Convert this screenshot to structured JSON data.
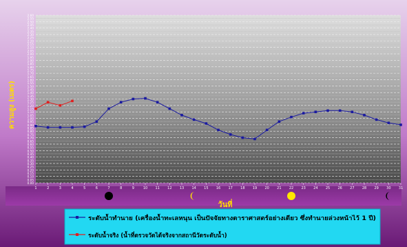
{
  "chart_data": {
    "type": "line",
    "xlabel": "วันที่",
    "ylabel": "ความสูง (เมตร)",
    "x": [
      1,
      2,
      3,
      4,
      5,
      6,
      7,
      8,
      9,
      10,
      11,
      12,
      13,
      14,
      15,
      16,
      17,
      18,
      19,
      20,
      21,
      22,
      23,
      24,
      25,
      26,
      27,
      28,
      29,
      30,
      31
    ],
    "xlim": [
      1,
      31
    ],
    "ylim": [
      0,
      2.6
    ],
    "y_ticks": [
      "0.00",
      "0.05",
      "0.10",
      "0.15",
      "0.20",
      "0.25",
      "0.30",
      "0.35",
      "0.40",
      "0.45",
      "0.50",
      "0.55",
      "0.60",
      "0.65",
      "0.70",
      "0.75",
      "0.80",
      "0.85",
      "0.90",
      "0.95",
      "1.00",
      "1.05",
      "1.10",
      "1.15",
      "1.20",
      "1.25",
      "1.30",
      "1.35",
      "1.40",
      "1.45",
      "1.50",
      "1.55",
      "1.60",
      "1.65",
      "1.70",
      "1.75",
      "1.80",
      "1.85",
      "1.90",
      "1.95",
      "2.00",
      "2.05",
      "2.10",
      "2.15",
      "2.20",
      "2.25",
      "2.30",
      "2.35",
      "2.40",
      "2.45",
      "2.50",
      "2.55",
      "2.60"
    ],
    "grid": true,
    "series": [
      {
        "name": "ระดับน้ำทำนาย (เครื่องน้ำทะเลหนุน เป็นปัจจัยทางดาราศาสตร์อย่างเดียว ซึ่งทำนายล่วงหน้าไว้ 1 ปี)",
        "color": "#1a1aa0",
        "x": [
          1,
          2,
          3,
          4,
          5,
          6,
          7,
          8,
          9,
          10,
          11,
          12,
          13,
          14,
          15,
          16,
          17,
          18,
          19,
          20,
          21,
          22,
          23,
          24,
          25,
          26,
          27,
          28,
          29,
          30,
          31
        ],
        "values": [
          0.88,
          0.86,
          0.86,
          0.86,
          0.87,
          0.95,
          1.15,
          1.25,
          1.3,
          1.31,
          1.25,
          1.15,
          1.05,
          0.98,
          0.92,
          0.82,
          0.75,
          0.7,
          0.68,
          0.82,
          0.95,
          1.02,
          1.08,
          1.1,
          1.12,
          1.12,
          1.1,
          1.05,
          0.98,
          0.93,
          0.9
        ]
      },
      {
        "name": "ระดับน้ำจริง (น้ำที่ตรวจวัดได้จริงจากสถานีวัดระดับน้ำ)",
        "color": "#e02020",
        "x": [
          1,
          2,
          3,
          4
        ],
        "values": [
          1.15,
          1.25,
          1.2,
          1.27
        ]
      }
    ],
    "moon_phases": [
      {
        "day": 7,
        "phase": "new-moon",
        "color": "#000000"
      },
      {
        "day": 14,
        "phase": "first-quarter",
        "color": "#ffe600"
      },
      {
        "day": 22,
        "phase": "full-moon",
        "color": "#ffe600"
      },
      {
        "day": 30,
        "phase": "last-quarter",
        "color": "#000000"
      }
    ],
    "legend_position": "bottom"
  }
}
